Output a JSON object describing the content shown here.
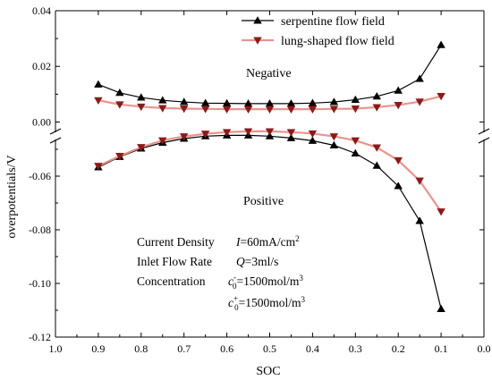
{
  "chart_data": {
    "type": "line",
    "xlabel": "SOC",
    "ylabel": "overpotentials/V",
    "xlim": [
      1.0,
      0.0
    ],
    "x_ticks": [
      "1.0",
      "0.9",
      "0.8",
      "0.7",
      "0.6",
      "0.5",
      "0.4",
      "0.3",
      "0.2",
      "0.1",
      "0.0"
    ],
    "y_axis_top": {
      "ylim": [
        -0.005,
        0.04
      ],
      "ticks": [
        "0.04",
        "0.02",
        "0.00"
      ]
    },
    "y_axis_bottom": {
      "ylim": [
        -0.12,
        -0.045
      ],
      "ticks": [
        "-0.06",
        "-0.08",
        "-0.10",
        "-0.12"
      ]
    },
    "axis_break": true,
    "grid": false,
    "legend_position": "top-right",
    "x": [
      0.9,
      0.85,
      0.8,
      0.75,
      0.7,
      0.65,
      0.6,
      0.55,
      0.5,
      0.45,
      0.4,
      0.35,
      0.3,
      0.25,
      0.2,
      0.15,
      0.1
    ],
    "series": [
      {
        "name": "serpentine flow field",
        "color": "#000000",
        "marker": "triangle-up",
        "negative": [
          0.0135,
          0.0105,
          0.0088,
          0.0078,
          0.0072,
          0.0068,
          0.0067,
          0.0066,
          0.0066,
          0.0066,
          0.0068,
          0.0072,
          0.008,
          0.0092,
          0.0113,
          0.0155,
          0.0277
        ],
        "positive": [
          -0.0567,
          -0.0528,
          -0.0497,
          -0.0475,
          -0.046,
          -0.0451,
          -0.0448,
          -0.0448,
          -0.0451,
          -0.0458,
          -0.0468,
          -0.0485,
          -0.0515,
          -0.0561,
          -0.0637,
          -0.0767,
          -0.1095
        ]
      },
      {
        "name": "lung-shaped flow field",
        "color": "#8B1A1A",
        "marker": "triangle-down",
        "negative": [
          0.0078,
          0.0063,
          0.0055,
          0.005,
          0.0048,
          0.0047,
          0.0046,
          0.0046,
          0.0046,
          0.0046,
          0.0046,
          0.0047,
          0.0048,
          0.0053,
          0.0061,
          0.0073,
          0.0093
        ],
        "positive": [
          -0.0562,
          -0.0525,
          -0.0492,
          -0.0467,
          -0.0452,
          -0.0442,
          -0.0436,
          -0.0433,
          -0.0433,
          -0.0436,
          -0.0441,
          -0.0452,
          -0.0467,
          -0.0493,
          -0.0541,
          -0.0617,
          -0.0732
        ]
      }
    ],
    "annotations": {
      "negative_label": "Negative",
      "positive_label": "Positive",
      "current_density": {
        "label": "Current Density",
        "symbol": "I",
        "value": "=60mA/cm",
        "sup": "2"
      },
      "inlet_flow_rate": {
        "label": "Inlet Flow Rate",
        "symbol": "Q",
        "value": "=3ml/s"
      },
      "concentration": {
        "label": "Concentration",
        "symbol": "c",
        "sub": "0",
        "sup_minus": "-",
        "sup_plus": "+",
        "value": "=1500mol/m",
        "sup": "3"
      }
    }
  }
}
